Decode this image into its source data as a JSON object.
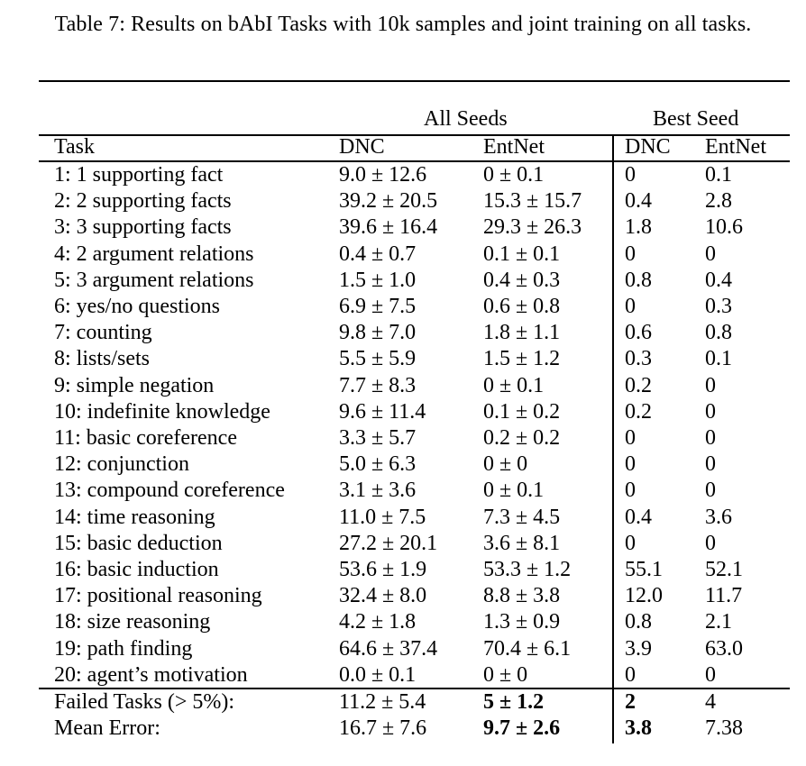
{
  "caption": "Table 7: Results on bAbI Tasks with 10k samples and joint training on all tasks.",
  "group_headers": {
    "all_seeds": "All Seeds",
    "best_seed": "Best Seed"
  },
  "column_headers": {
    "task": "Task",
    "dnc_all": "DNC",
    "entnet_all": "EntNet",
    "dnc_best": "DNC",
    "entnet_best": "EntNet"
  },
  "rows": [
    {
      "task": "1: 1 supporting fact",
      "dnc_all": "9.0 ± 12.6",
      "entnet_all": "0 ± 0.1",
      "dnc_best": "0",
      "entnet_best": "0.1"
    },
    {
      "task": "2: 2 supporting facts",
      "dnc_all": "39.2 ± 20.5",
      "entnet_all": "15.3 ± 15.7",
      "dnc_best": "0.4",
      "entnet_best": "2.8"
    },
    {
      "task": "3: 3 supporting facts",
      "dnc_all": "39.6 ± 16.4",
      "entnet_all": "29.3 ± 26.3",
      "dnc_best": "1.8",
      "entnet_best": "10.6"
    },
    {
      "task": "4: 2 argument relations",
      "dnc_all": "0.4 ± 0.7",
      "entnet_all": "0.1 ± 0.1",
      "dnc_best": "0",
      "entnet_best": "0"
    },
    {
      "task": "5: 3 argument relations",
      "dnc_all": "1.5 ± 1.0",
      "entnet_all": "0.4 ± 0.3",
      "dnc_best": "0.8",
      "entnet_best": "0.4"
    },
    {
      "task": "6: yes/no questions",
      "dnc_all": "6.9 ± 7.5",
      "entnet_all": "0.6 ± 0.8",
      "dnc_best": "0",
      "entnet_best": "0.3"
    },
    {
      "task": "7: counting",
      "dnc_all": "9.8 ± 7.0",
      "entnet_all": "1.8 ± 1.1",
      "dnc_best": "0.6",
      "entnet_best": "0.8"
    },
    {
      "task": "8: lists/sets",
      "dnc_all": "5.5 ± 5.9",
      "entnet_all": "1.5 ± 1.2",
      "dnc_best": "0.3",
      "entnet_best": "0.1"
    },
    {
      "task": "9: simple negation",
      "dnc_all": "7.7 ± 8.3",
      "entnet_all": "0 ± 0.1",
      "dnc_best": "0.2",
      "entnet_best": "0"
    },
    {
      "task": "10: indefinite knowledge",
      "dnc_all": "9.6 ± 11.4",
      "entnet_all": "0.1 ± 0.2",
      "dnc_best": "0.2",
      "entnet_best": "0"
    },
    {
      "task": "11: basic coreference",
      "dnc_all": "3.3 ± 5.7",
      "entnet_all": "0.2 ± 0.2",
      "dnc_best": "0",
      "entnet_best": "0"
    },
    {
      "task": "12: conjunction",
      "dnc_all": "5.0 ± 6.3",
      "entnet_all": "0 ± 0",
      "dnc_best": "0",
      "entnet_best": "0"
    },
    {
      "task": "13: compound coreference",
      "dnc_all": "3.1 ± 3.6",
      "entnet_all": "0 ± 0.1",
      "dnc_best": "0",
      "entnet_best": "0"
    },
    {
      "task": "14: time reasoning",
      "dnc_all": "11.0 ± 7.5",
      "entnet_all": "7.3 ± 4.5",
      "dnc_best": "0.4",
      "entnet_best": "3.6"
    },
    {
      "task": "15: basic deduction",
      "dnc_all": "27.2 ± 20.1",
      "entnet_all": "3.6 ± 8.1",
      "dnc_best": "0",
      "entnet_best": "0"
    },
    {
      "task": "16: basic induction",
      "dnc_all": "53.6 ± 1.9",
      "entnet_all": "53.3 ± 1.2",
      "dnc_best": "55.1",
      "entnet_best": "52.1"
    },
    {
      "task": "17: positional reasoning",
      "dnc_all": "32.4 ± 8.0",
      "entnet_all": "8.8 ± 3.8",
      "dnc_best": "12.0",
      "entnet_best": "11.7"
    },
    {
      "task": "18: size reasoning",
      "dnc_all": "4.2 ± 1.8",
      "entnet_all": "1.3 ± 0.9",
      "dnc_best": "0.8",
      "entnet_best": "2.1"
    },
    {
      "task": "19: path finding",
      "dnc_all": "64.6 ± 37.4",
      "entnet_all": "70.4 ± 6.1",
      "dnc_best": "3.9",
      "entnet_best": "63.0"
    },
    {
      "task": "20: agent’s motivation",
      "dnc_all": "0.0 ± 0.1",
      "entnet_all": "0 ± 0",
      "dnc_best": "0",
      "entnet_best": "0"
    }
  ],
  "summary_rows": [
    {
      "task": "Failed Tasks (> 5%):",
      "dnc_all": "11.2 ± 5.4",
      "entnet_all": "5 ± 1.2",
      "dnc_best": "2",
      "entnet_best": "4",
      "bold": [
        "entnet_all",
        "dnc_best"
      ]
    },
    {
      "task": "Mean Error:",
      "dnc_all": "16.7 ± 7.6",
      "entnet_all": "9.7 ± 2.6",
      "dnc_best": "3.8",
      "entnet_best": "7.38",
      "bold": [
        "entnet_all",
        "dnc_best"
      ]
    }
  ]
}
